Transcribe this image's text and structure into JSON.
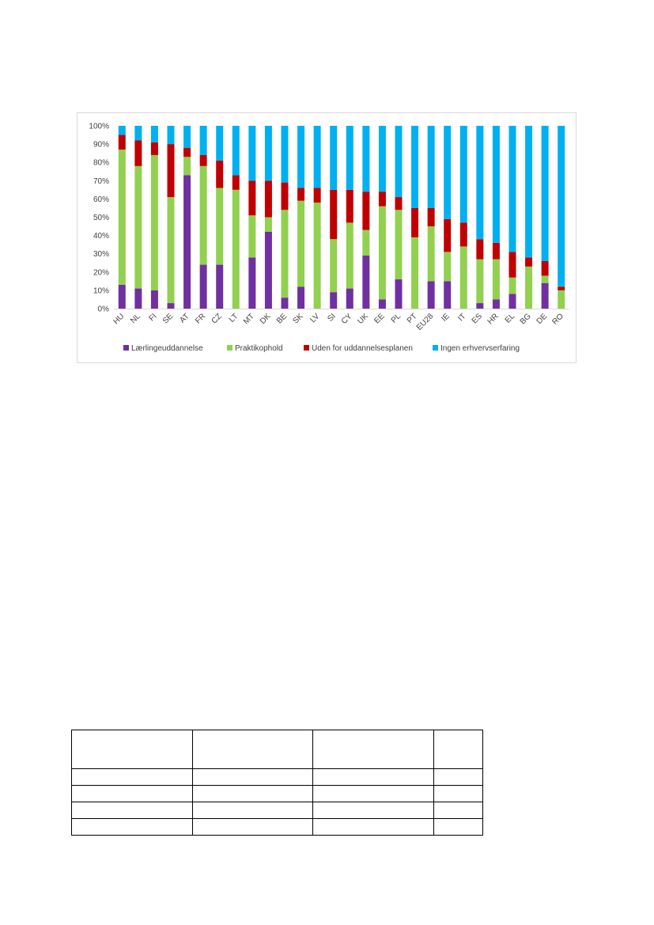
{
  "chart_data": {
    "type": "bar",
    "stacked": true,
    "percent": true,
    "title": "",
    "xlabel": "",
    "ylabel": "",
    "ylim": [
      0,
      100
    ],
    "yticks": [
      "0%",
      "10%",
      "20%",
      "30%",
      "40%",
      "50%",
      "60%",
      "70%",
      "80%",
      "90%",
      "100%"
    ],
    "grid": false,
    "legend_position": "bottom",
    "categories": [
      "HU",
      "NL",
      "FI",
      "SE",
      "AT",
      "FR",
      "CZ",
      "LT",
      "MT",
      "DK",
      "BE",
      "SK",
      "LV",
      "SI",
      "CY",
      "UK",
      "EE",
      "PL",
      "PT",
      "EU28",
      "IE",
      "IT",
      "ES",
      "HR",
      "EL",
      "BG",
      "DE",
      "RO"
    ],
    "series": [
      {
        "name": "Lærlingeuddannelse",
        "color": "#7030a0",
        "values": [
          13,
          11,
          10,
          3,
          73,
          24,
          24,
          0,
          28,
          42,
          6,
          12,
          0,
          9,
          11,
          29,
          5,
          16,
          0,
          15,
          15,
          0,
          3,
          5,
          8,
          0,
          14,
          0
        ]
      },
      {
        "name": "Praktikophold",
        "color": "#92d050",
        "values": [
          74,
          67,
          74,
          58,
          10,
          54,
          42,
          65,
          23,
          8,
          48,
          47,
          58,
          29,
          36,
          14,
          51,
          38,
          39,
          30,
          16,
          34,
          24,
          22,
          9,
          23,
          4,
          10
        ]
      },
      {
        "name": "Uden for uddannelsesplanen",
        "color": "#c00000",
        "values": [
          8,
          14,
          7,
          29,
          5,
          6,
          15,
          8,
          19,
          20,
          15,
          7,
          8,
          27,
          18,
          21,
          8,
          7,
          16,
          10,
          18,
          13,
          11,
          9,
          14,
          5,
          8,
          2
        ]
      },
      {
        "name": "Ingen erhvervserfaring",
        "color": "#00b0f0",
        "values": [
          5,
          8,
          9,
          10,
          12,
          16,
          19,
          27,
          30,
          30,
          31,
          34,
          34,
          35,
          35,
          36,
          36,
          39,
          45,
          45,
          51,
          53,
          62,
          64,
          69,
          72,
          74,
          88
        ]
      }
    ]
  }
}
